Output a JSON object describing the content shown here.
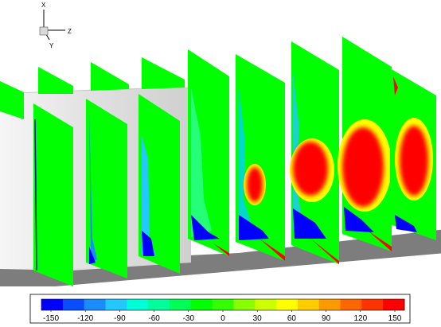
{
  "axes": {
    "x": "X",
    "y": "Y",
    "z": "Z"
  },
  "colorbar": {
    "ticks": [
      "-150",
      "-120",
      "-90",
      "-60",
      "-30",
      "0",
      "30",
      "60",
      "90",
      "120",
      "150"
    ],
    "colors": [
      "#0000ff",
      "#0a4dff",
      "#1a8cff",
      "#22c8ff",
      "#00ffd8",
      "#00ff9a",
      "#00ff55",
      "#00ff00",
      "#33ff00",
      "#88ff00",
      "#ccff00",
      "#ffff00",
      "#ffcc00",
      "#ff9900",
      "#ff6600",
      "#ff3300",
      "#ff0000"
    ]
  },
  "colors": {
    "field": "#00ff00",
    "high": "#ff0000",
    "low": "#0000ff",
    "hub": "#e6e6e6",
    "floor": "#808080"
  }
}
